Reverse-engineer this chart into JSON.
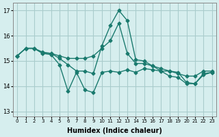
{
  "xlabel": "Humidex (Indice chaleur)",
  "ylabel": "",
  "bg_color": "#d6eeee",
  "grid_color": "#aacccc",
  "line_color": "#1a7a6e",
  "xlim": [
    -0.5,
    23.5
  ],
  "ylim": [
    12.8,
    17.3
  ],
  "yticks": [
    13,
    14,
    15,
    16,
    17
  ],
  "xtick_labels": [
    "0",
    "1",
    "2",
    "3",
    "4",
    "5",
    "6",
    "7",
    "8",
    "9",
    "10",
    "11",
    "12",
    "13",
    "14",
    "15",
    "16",
    "17",
    "18",
    "19",
    "20",
    "21",
    "22",
    "23"
  ],
  "series1_x": [
    0,
    1,
    2,
    3,
    4,
    5,
    6,
    7,
    8,
    9,
    10,
    11,
    12,
    13,
    14,
    15,
    16,
    17,
    18,
    19,
    20,
    21,
    22,
    23
  ],
  "series1_y": [
    15.2,
    15.5,
    15.5,
    15.3,
    15.3,
    15.2,
    15.1,
    15.1,
    15.1,
    15.2,
    15.5,
    15.8,
    16.5,
    15.3,
    14.9,
    14.9,
    14.8,
    14.7,
    14.6,
    14.5,
    14.4,
    14.4,
    14.6,
    14.6
  ],
  "series2_x": [
    0,
    1,
    2,
    3,
    4,
    5,
    6,
    7,
    8,
    9,
    10,
    11,
    12,
    13,
    14,
    15,
    16,
    17,
    18,
    19,
    20,
    21,
    22,
    23
  ],
  "series2_y": [
    15.2,
    15.5,
    15.5,
    15.35,
    15.3,
    15.1,
    14.85,
    14.6,
    14.6,
    14.5,
    15.6,
    16.4,
    17.0,
    16.6,
    15.05,
    15.0,
    14.8,
    14.6,
    14.6,
    14.55,
    14.15,
    14.1,
    14.5,
    14.55
  ],
  "series3_x": [
    0,
    1,
    2,
    3,
    4,
    5,
    6,
    7,
    8,
    9,
    10,
    11,
    12,
    13,
    14,
    15,
    16,
    17,
    18,
    19,
    20,
    21,
    22,
    23
  ],
  "series3_y": [
    15.2,
    15.5,
    15.5,
    15.3,
    15.25,
    14.85,
    13.8,
    14.55,
    13.85,
    13.75,
    14.55,
    14.6,
    14.55,
    14.65,
    14.55,
    14.7,
    14.65,
    14.6,
    14.4,
    14.35,
    14.1,
    14.1,
    14.45,
    14.55
  ]
}
